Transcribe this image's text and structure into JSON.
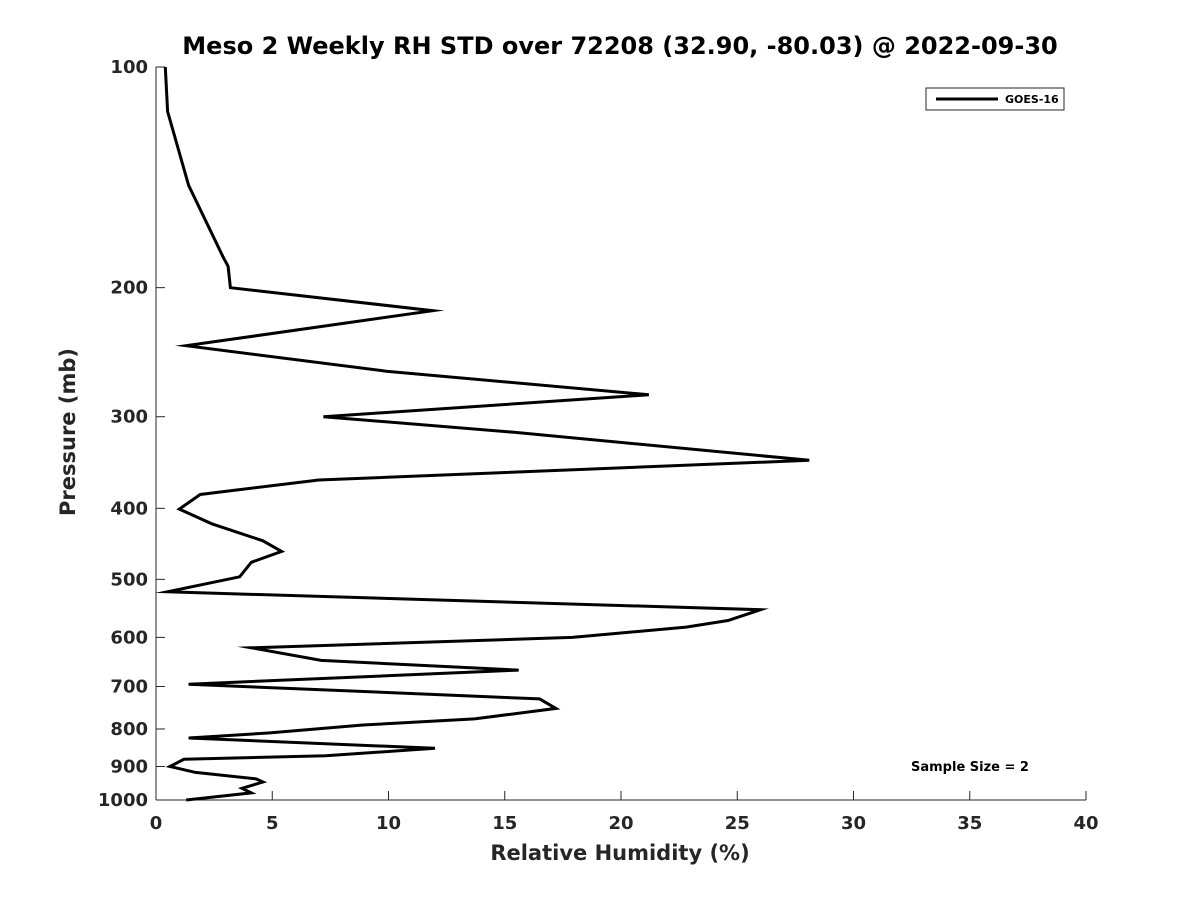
{
  "chart_data": {
    "type": "line",
    "title": "Meso 2 Weekly RH STD over 72208 (32.90, -80.03) @ 2022-09-30",
    "xlabel": "Relative Humidity (%)",
    "ylabel": "Pressure (mb)",
    "xlim": [
      0,
      40
    ],
    "ylim": [
      100,
      1000
    ],
    "yscale": "log",
    "yreversed": true,
    "xticks": [
      "0",
      "5",
      "10",
      "15",
      "20",
      "25",
      "30",
      "35",
      "40"
    ],
    "yticks": [
      "100",
      "200",
      "300",
      "400",
      "500",
      "600",
      "700",
      "800",
      "900",
      "1000"
    ],
    "grid": false,
    "legend": {
      "position": "top-right",
      "entries": [
        "GOES-16"
      ]
    },
    "annotation": "Sample Size = 2",
    "series": [
      {
        "name": "GOES-16",
        "color": "#000000",
        "x": [
          0.4,
          0.5,
          1.4,
          2.9,
          3.1,
          3.2,
          11.9,
          1.3,
          9.9,
          21.2,
          7.2,
          15.4,
          28.1,
          7.0,
          1.9,
          1.0,
          2.4,
          4.6,
          5.4,
          4.1,
          3.6,
          0.5,
          26.0,
          24.6,
          22.8,
          17.9,
          4.1,
          7.1,
          15.6,
          1.4,
          16.5,
          17.2,
          13.7,
          8.9,
          4.9,
          1.4,
          12.0,
          7.3,
          1.2,
          0.6,
          1.7,
          4.3,
          4.6,
          3.7,
          4.1,
          1.3
        ],
        "y": [
          100,
          115,
          145,
          182,
          187,
          200,
          215,
          240,
          260,
          280,
          300,
          315,
          344,
          366,
          383,
          401,
          420,
          443,
          458,
          474,
          496,
          520,
          550,
          569,
          581,
          600,
          620,
          645,
          665,
          695,
          728,
          750,
          775,
          790,
          810,
          823,
          850,
          870,
          880,
          900,
          917,
          936,
          945,
          964,
          978,
          1000
        ]
      }
    ]
  }
}
